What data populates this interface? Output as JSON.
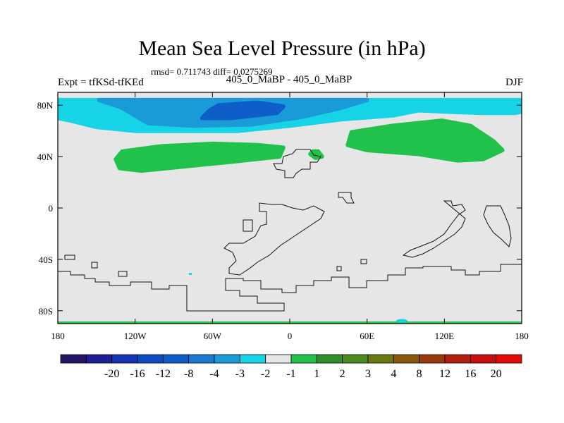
{
  "header": {
    "title": "Mean Sea Level Pressure (in hPa)",
    "stats": "rmsd= 0.711743 diff= 0.0275269",
    "experiment": "Expt = tfKSd-tfKEd",
    "runs": "405_0_MaBP - 405_0_MaBP",
    "season": "DJF"
  },
  "colors": {
    "background_field": "#e6e6e6",
    "light_blue": "#16d4e6",
    "mid_blue": "#1a9ad6",
    "dark_blue": "#0d5ec8",
    "green": "#21c24b"
  },
  "chart_data": {
    "type": "heatmap",
    "title": "Mean Sea Level Pressure (in hPa)",
    "x_ticks": [
      "180",
      "120W",
      "60W",
      "0",
      "60E",
      "120E",
      "180"
    ],
    "x_values": [
      -180,
      -120,
      -60,
      0,
      60,
      120,
      180
    ],
    "y_ticks": [
      "80N",
      "40N",
      "0",
      "40S",
      "80S"
    ],
    "y_values": [
      80,
      40,
      0,
      -40,
      -80
    ],
    "xlim": [
      -180,
      180
    ],
    "ylim": [
      -90,
      90
    ],
    "colorbar": {
      "colors": [
        "#261466",
        "#1e1e96",
        "#1434b4",
        "#0f4cc4",
        "#0d5ec8",
        "#1a78d2",
        "#1a9ad6",
        "#16d4e6",
        "#e6e6e6",
        "#21c24b",
        "#2f8e2a",
        "#4a8a1e",
        "#6a7810",
        "#8a5a0a",
        "#9a3a0a",
        "#b01e0e",
        "#c80e0e",
        "#e40a0a"
      ],
      "labels": [
        "-20",
        "-16",
        "-12",
        "-8",
        "-4",
        "-3",
        "-2",
        "-1",
        "1",
        "2",
        "3",
        "4",
        "8",
        "12",
        "16",
        "20"
      ]
    },
    "regions": [
      {
        "level": "-1 to -2",
        "color": "light_blue",
        "polygon": [
          [
            -180,
            84
          ],
          [
            180,
            84
          ],
          [
            180,
            75
          ],
          [
            175,
            74
          ],
          [
            150,
            74
          ],
          [
            120,
            75
          ],
          [
            100,
            76
          ],
          [
            80,
            72
          ],
          [
            40,
            69
          ],
          [
            0,
            64
          ],
          [
            -40,
            60
          ],
          [
            -80,
            60
          ],
          [
            -120,
            60
          ],
          [
            -150,
            63
          ],
          [
            -170,
            68
          ],
          [
            -180,
            70
          ]
        ]
      },
      {
        "level": "-2 to -3",
        "color": "mid_blue",
        "polygon": [
          [
            -148,
            84
          ],
          [
            60,
            84
          ],
          [
            40,
            78
          ],
          [
            10,
            71
          ],
          [
            -30,
            65
          ],
          [
            -75,
            64
          ],
          [
            -110,
            66
          ],
          [
            -120,
            72
          ],
          [
            -130,
            78
          ]
        ]
      },
      {
        "level": "-3 to -4",
        "color": "dark_blue",
        "polygon": [
          [
            -55,
            80
          ],
          [
            -25,
            82
          ],
          [
            -5,
            79
          ],
          [
            -10,
            74
          ],
          [
            -45,
            70
          ],
          [
            -68,
            70
          ],
          [
            -62,
            76
          ]
        ]
      },
      {
        "level": "1 to 2",
        "color": "green",
        "polygon": [
          [
            -130,
            44
          ],
          [
            -100,
            48
          ],
          [
            -60,
            50
          ],
          [
            -25,
            49
          ],
          [
            -5,
            47
          ],
          [
            -8,
            40
          ],
          [
            -45,
            36
          ],
          [
            -85,
            32
          ],
          [
            -115,
            29
          ],
          [
            -132,
            31
          ],
          [
            -135,
            38
          ]
        ]
      },
      {
        "level": "1 to 2",
        "color": "green",
        "polygon": [
          [
            48,
            59
          ],
          [
            80,
            64
          ],
          [
            118,
            68
          ],
          [
            140,
            64
          ],
          [
            158,
            52
          ],
          [
            165,
            45
          ],
          [
            150,
            38
          ],
          [
            130,
            37
          ],
          [
            100,
            42
          ],
          [
            60,
            45
          ],
          [
            45,
            49
          ]
        ]
      },
      {
        "level": "1 to 2",
        "color": "green",
        "polygon": [
          [
            18,
            44
          ],
          [
            22,
            44
          ],
          [
            25,
            40
          ],
          [
            20,
            39
          ],
          [
            16,
            42
          ]
        ]
      }
    ]
  }
}
